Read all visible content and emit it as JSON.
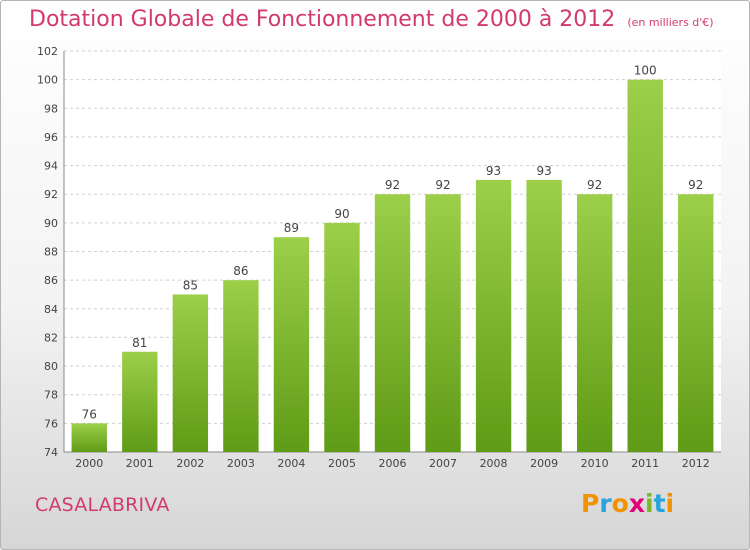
{
  "chart_data": {
    "type": "bar",
    "title": "Dotation Globale de Fonctionnement de 2000 à 2012",
    "unit_label": "(en milliers d'€)",
    "categories": [
      "2000",
      "2001",
      "2002",
      "2003",
      "2004",
      "2005",
      "2006",
      "2007",
      "2008",
      "2009",
      "2010",
      "2011",
      "2012"
    ],
    "values": [
      76,
      81,
      85,
      86,
      89,
      90,
      92,
      92,
      93,
      93,
      92,
      100,
      92
    ],
    "ylim": [
      74,
      102
    ],
    "yticks": [
      74,
      76,
      78,
      80,
      82,
      84,
      86,
      88,
      90,
      92,
      94,
      96,
      98,
      100,
      102
    ],
    "grid": true,
    "bar_color_top": "#9ccf4a",
    "bar_color_bottom": "#5f9b16"
  },
  "footer": {
    "commune": "CASALABRIVA",
    "logo_letters": [
      "P",
      "r",
      "o",
      "x",
      "i",
      "t",
      "i"
    ],
    "logo_colors": [
      "#f39200",
      "#29a3dc",
      "#f39200",
      "#e2007a",
      "#7ab929",
      "#29a3dc",
      "#f39200"
    ]
  }
}
